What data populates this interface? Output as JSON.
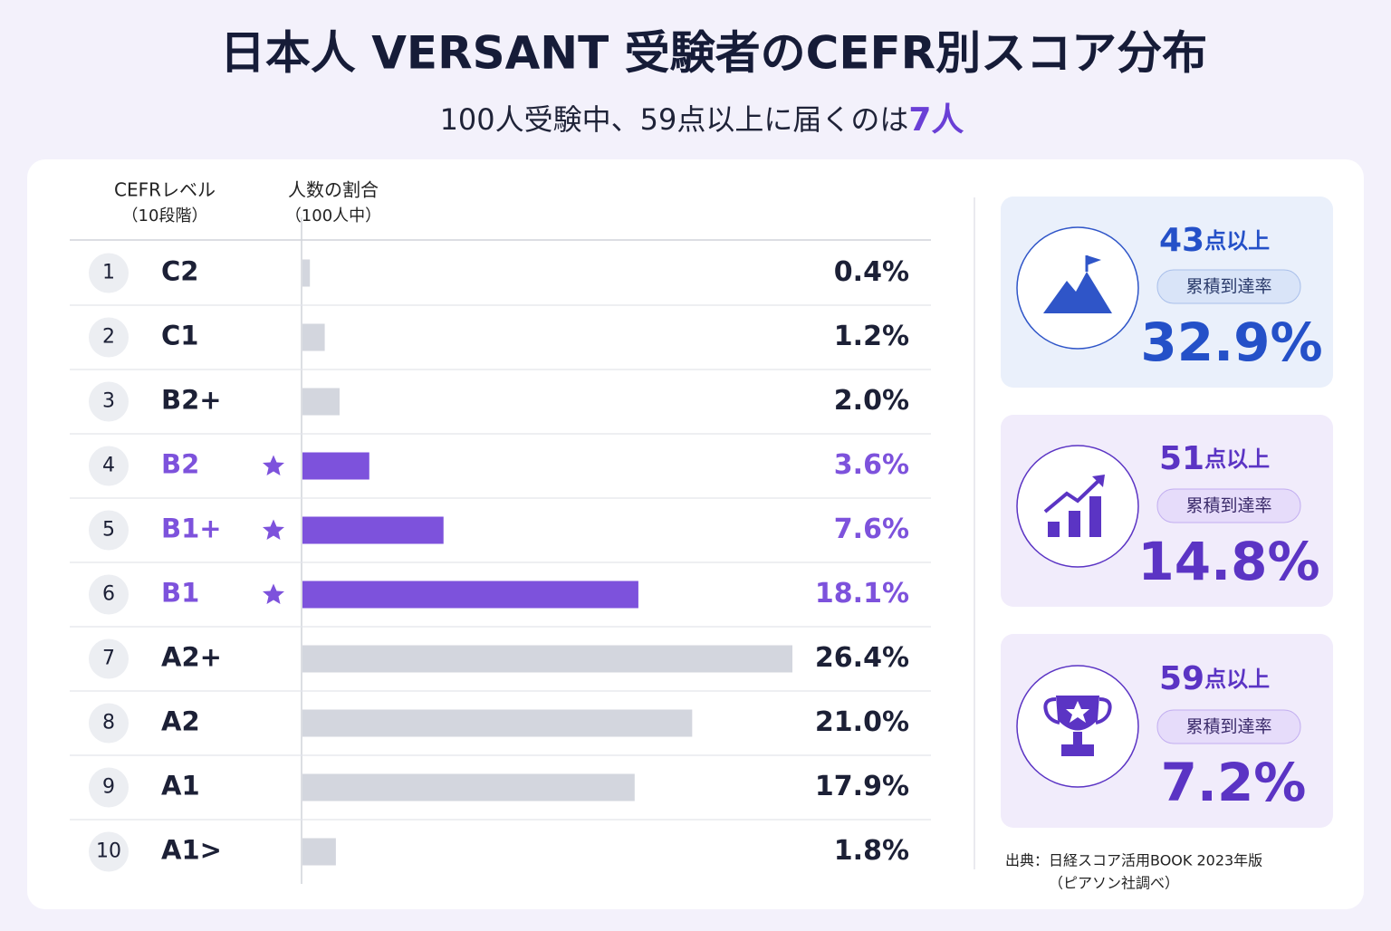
{
  "title": "日本人 VERSANT 受験者のCEFR別スコア分布",
  "subtitle": [
    "100人受験中、59点以上に届くのは",
    "7人"
  ],
  "chart_data": {
    "type": "bar",
    "header": {
      "level": [
        "CEFRレベル",
        "（10段階）"
      ],
      "share": [
        "人数の割合",
        "（100人中）"
      ]
    },
    "ranks": [
      1,
      2,
      3,
      4,
      5,
      6,
      7,
      8,
      9,
      10
    ],
    "categories": [
      "C2",
      "C1",
      "B2+",
      "B2",
      "B1+",
      "B1",
      "A2+",
      "A2",
      "A1",
      "A1>"
    ],
    "values": [
      0.4,
      1.2,
      2.0,
      3.6,
      7.6,
      18.1,
      26.4,
      21.0,
      17.9,
      1.8
    ],
    "value_labels": [
      "0.4%",
      "1.2%",
      "2.0%",
      "3.6%",
      "7.6%",
      "18.1%",
      "26.4%",
      "21.0%",
      "17.9%",
      "1.8%"
    ],
    "starred": [
      false,
      false,
      false,
      true,
      true,
      true,
      false,
      false,
      false,
      false
    ],
    "color": "#d3d6de",
    "highlight_color": "#7d52dc"
  },
  "cards": [
    {
      "threshold": "43",
      "unit": "点以上",
      "badge": "累積到達率",
      "value": "32.9%"
    },
    {
      "threshold": "51",
      "unit": "点以上",
      "badge": "累積到達率",
      "value": "14.8%"
    },
    {
      "threshold": "59",
      "unit": "点以上",
      "badge": "累積到達率",
      "value": "7.2%"
    }
  ],
  "source": [
    "出典：日経スコア活用BOOK 2023年版",
    "（ピアソン社調べ）"
  ]
}
